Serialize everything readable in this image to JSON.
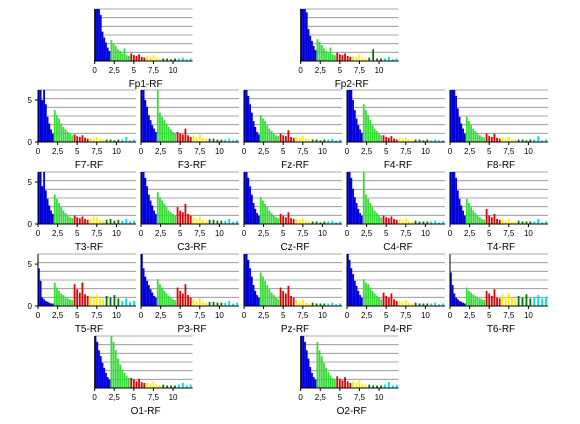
{
  "colors": {
    "bands": [
      "#0000dd",
      "#33dd33",
      "#dd0000",
      "#ffee00",
      "#007700",
      "#00dddd"
    ],
    "grid": "#8c8c8c",
    "axis": "#000000"
  },
  "chart_data": {
    "type": "bar",
    "layout": "eeg-10-20-grid",
    "x_ticks": [
      "0",
      "2,5",
      "5",
      "7,5",
      "10"
    ],
    "x_tick_values": [
      0,
      2.5,
      5,
      7.5,
      10
    ],
    "xlim": [
      0,
      12.5
    ],
    "ylim": [
      0,
      6.2
    ],
    "y_ticks": [
      "0",
      "5"
    ],
    "y_tick_values": [
      0,
      5
    ],
    "band_edges_hz": [
      0,
      2,
      4.5,
      6.5,
      8.5,
      10.5,
      12.5
    ],
    "panels": [
      {
        "title": "Fp1-RF",
        "row": 0,
        "col": 0.55,
        "yaxis": false,
        "bands": [
          [
            6.5,
            6.2,
            6.2,
            5.5,
            3.5,
            2.8,
            2.2,
            1.6,
            1.2
          ],
          [
            2.5,
            2.1,
            1.8,
            1.4,
            1.2,
            0.9,
            1.5,
            0.7,
            0.6
          ],
          [
            0.9,
            0.7,
            0.6,
            0.8,
            0.5,
            0.4
          ],
          [
            0.6,
            0.5,
            0.7,
            0.4,
            0.3
          ],
          [
            0.3,
            0.3,
            0.2,
            0.3
          ],
          [
            0.3,
            0.4,
            0.2,
            0.3
          ]
        ]
      },
      {
        "title": "Fp2-RF",
        "row": 0,
        "col": 2.55,
        "yaxis": false,
        "bands": [
          [
            6.5,
            6.2,
            6.2,
            5.8,
            3.8,
            3.0,
            2.4,
            1.8,
            1.3
          ],
          [
            2.6,
            2.3,
            1.9,
            1.5,
            1.2,
            1.0,
            1.6,
            0.8,
            0.7
          ],
          [
            1.0,
            0.8,
            0.7,
            0.9,
            0.6,
            0.5
          ],
          [
            0.6,
            0.5,
            0.8,
            0.4,
            0.3
          ],
          [
            0.4,
            1.4,
            0.3,
            0.3
          ],
          [
            0.3,
            0.5,
            0.2,
            0.3
          ]
        ]
      },
      {
        "title": "F7-RF",
        "row": 1,
        "col": 0,
        "yaxis": true,
        "bands": [
          [
            6.2,
            6.2,
            5.0,
            6.2,
            4.5,
            3.0,
            2.2,
            1.5,
            1.0
          ],
          [
            3.8,
            3.2,
            2.8,
            2.2,
            1.8,
            1.5,
            1.2,
            1.0,
            0.8
          ],
          [
            0.9,
            0.7,
            0.6,
            0.8,
            0.5,
            0.4
          ],
          [
            0.5,
            0.4,
            0.6,
            0.4,
            0.3
          ],
          [
            0.3,
            0.3,
            0.2,
            0.3
          ],
          [
            0.3,
            0.6,
            0.2,
            0.3
          ]
        ]
      },
      {
        "title": "F3-RF",
        "row": 1,
        "col": 1,
        "yaxis": false,
        "bands": [
          [
            6.2,
            6.2,
            5.0,
            4.2,
            3.2,
            2.6,
            2.0,
            1.6,
            1.2
          ],
          [
            6.2,
            3.5,
            3.0,
            2.6,
            2.2,
            1.8,
            1.5,
            1.2,
            1.0
          ],
          [
            1.2,
            1.0,
            0.9,
            1.6,
            0.8,
            0.6
          ],
          [
            0.8,
            0.6,
            0.9,
            0.5,
            0.4
          ],
          [
            0.4,
            0.4,
            0.3,
            0.3
          ],
          [
            0.3,
            0.4,
            0.2,
            0.3
          ]
        ]
      },
      {
        "title": "Fz-RF",
        "row": 1,
        "col": 2,
        "yaxis": false,
        "bands": [
          [
            6.2,
            6.2,
            5.5,
            4.5,
            3.5,
            2.5,
            1.8,
            1.2,
            0.9
          ],
          [
            3.2,
            2.8,
            2.5,
            2.0,
            1.6,
            1.3,
            1.0,
            0.8,
            0.7
          ],
          [
            1.0,
            0.8,
            0.7,
            1.4,
            0.6,
            0.5
          ],
          [
            0.6,
            0.5,
            0.7,
            0.4,
            0.3
          ],
          [
            0.3,
            0.3,
            0.2,
            0.3
          ],
          [
            0.3,
            0.4,
            0.2,
            0.3
          ]
        ]
      },
      {
        "title": "F4-RF",
        "row": 1,
        "col": 3,
        "yaxis": false,
        "bands": [
          [
            6.2,
            6.2,
            6.2,
            5.0,
            3.8,
            2.8,
            2.0,
            1.5,
            1.1
          ],
          [
            4.5,
            3.8,
            3.2,
            2.6,
            2.0,
            1.6,
            1.3,
            1.0,
            0.8
          ],
          [
            0.8,
            0.6,
            0.5,
            0.7,
            0.4,
            0.3
          ],
          [
            0.5,
            0.4,
            0.5,
            0.3,
            0.3
          ],
          [
            0.3,
            0.3,
            0.2,
            0.3
          ],
          [
            0.2,
            0.3,
            0.2,
            0.2
          ]
        ]
      },
      {
        "title": "F8-RF",
        "row": 1,
        "col": 4,
        "yaxis": false,
        "bands": [
          [
            6.2,
            6.2,
            6.2,
            5.5,
            4.0,
            3.0,
            2.2,
            1.6,
            1.0
          ],
          [
            3.0,
            2.5,
            2.0,
            1.6,
            1.3,
            1.0,
            0.8,
            0.6,
            0.5
          ],
          [
            1.0,
            0.7,
            0.6,
            1.0,
            0.5,
            0.4
          ],
          [
            0.5,
            0.4,
            0.6,
            0.3,
            0.3
          ],
          [
            0.3,
            0.3,
            0.2,
            0.3
          ],
          [
            0.3,
            0.7,
            0.2,
            0.3
          ]
        ]
      },
      {
        "title": "T3-RF",
        "row": 2,
        "col": 0,
        "yaxis": true,
        "bands": [
          [
            6.2,
            6.2,
            4.5,
            6.2,
            4.0,
            3.0,
            2.2,
            1.6,
            1.2
          ],
          [
            3.5,
            3.0,
            2.5,
            2.0,
            1.6,
            1.3,
            1.0,
            0.8,
            0.7
          ],
          [
            1.0,
            0.8,
            0.7,
            0.9,
            0.6,
            0.5
          ],
          [
            0.6,
            0.9,
            0.8,
            0.5,
            0.4
          ],
          [
            0.5,
            0.6,
            0.4,
            0.5
          ],
          [
            0.4,
            0.6,
            0.3,
            0.4
          ]
        ]
      },
      {
        "title": "C3-RF",
        "row": 2,
        "col": 1,
        "yaxis": false,
        "bands": [
          [
            6.2,
            6.2,
            5.5,
            4.5,
            3.5,
            2.8,
            2.2,
            1.6,
            1.2
          ],
          [
            3.8,
            3.2,
            2.8,
            2.4,
            2.0,
            1.6,
            1.4,
            1.2,
            1.0
          ],
          [
            2.0,
            1.6,
            1.4,
            2.4,
            1.2,
            1.0
          ],
          [
            0.8,
            0.6,
            0.9,
            0.5,
            0.4
          ],
          [
            0.5,
            0.5,
            0.4,
            0.4
          ],
          [
            0.4,
            0.6,
            0.3,
            0.4
          ]
        ]
      },
      {
        "title": "Cz-RF",
        "row": 2,
        "col": 2,
        "yaxis": false,
        "bands": [
          [
            6.2,
            6.2,
            5.5,
            4.5,
            3.5,
            2.5,
            1.8,
            1.3,
            1.0
          ],
          [
            3.2,
            2.8,
            2.4,
            2.0,
            1.6,
            1.3,
            1.0,
            0.8,
            0.7
          ],
          [
            1.2,
            1.0,
            0.8,
            1.4,
            0.7,
            0.6
          ],
          [
            0.6,
            0.5,
            0.7,
            0.4,
            0.3
          ],
          [
            0.3,
            0.3,
            0.2,
            0.3
          ],
          [
            0.3,
            0.4,
            0.2,
            0.3
          ]
        ]
      },
      {
        "title": "C4-RF",
        "row": 2,
        "col": 3,
        "yaxis": false,
        "bands": [
          [
            6.2,
            6.2,
            5.5,
            4.2,
            3.2,
            2.5,
            1.8,
            1.3,
            1.0
          ],
          [
            6.2,
            3.5,
            3.0,
            2.5,
            2.0,
            1.6,
            1.3,
            1.0,
            0.8
          ],
          [
            1.0,
            0.8,
            0.7,
            0.9,
            0.6,
            0.5
          ],
          [
            0.6,
            0.5,
            0.7,
            0.4,
            0.3
          ],
          [
            0.4,
            0.3,
            0.3,
            0.3
          ],
          [
            0.3,
            0.4,
            0.2,
            0.3
          ]
        ]
      },
      {
        "title": "T4-RF",
        "row": 2,
        "col": 4,
        "yaxis": false,
        "bands": [
          [
            6.2,
            6.2,
            6.2,
            5.5,
            4.0,
            3.0,
            2.2,
            1.6,
            1.0
          ],
          [
            3.0,
            2.5,
            2.0,
            1.6,
            1.3,
            1.0,
            0.8,
            0.6,
            0.5
          ],
          [
            1.8,
            1.0,
            0.8,
            1.2,
            0.6,
            0.5
          ],
          [
            0.5,
            0.4,
            0.6,
            0.3,
            0.3
          ],
          [
            0.4,
            0.3,
            0.3,
            0.3
          ],
          [
            0.3,
            0.6,
            0.2,
            0.3
          ]
        ]
      },
      {
        "title": "T5-RF",
        "row": 3,
        "col": 0,
        "yaxis": true,
        "bands": [
          [
            4.5,
            3.0,
            1.0,
            0.8,
            0.6,
            0.5,
            0.4,
            0.3,
            0.3
          ],
          [
            2.8,
            2.2,
            1.8,
            1.5,
            1.3,
            1.1,
            0.9,
            0.8,
            0.7
          ],
          [
            2.6,
            2.0,
            1.6,
            2.8,
            1.4,
            1.2
          ],
          [
            1.2,
            1.0,
            1.4,
            0.9,
            0.8
          ],
          [
            1.2,
            1.0,
            1.3,
            0.9
          ],
          [
            0.6,
            0.9,
            0.5,
            0.6
          ]
        ]
      },
      {
        "title": "P3-RF",
        "row": 3,
        "col": 1,
        "yaxis": false,
        "bands": [
          [
            6.2,
            4.5,
            3.5,
            3.0,
            2.5,
            2.0,
            1.6,
            1.2,
            1.0
          ],
          [
            3.2,
            2.6,
            2.2,
            1.8,
            1.5,
            1.2,
            1.0,
            0.8,
            0.7
          ],
          [
            2.2,
            1.8,
            1.5,
            2.6,
            1.3,
            1.0
          ],
          [
            0.8,
            0.6,
            1.0,
            0.5,
            0.4
          ],
          [
            0.5,
            0.5,
            0.4,
            0.4
          ],
          [
            0.4,
            0.6,
            0.3,
            0.4
          ]
        ]
      },
      {
        "title": "Pz-RF",
        "row": 3,
        "col": 2,
        "yaxis": false,
        "bands": [
          [
            6.2,
            6.2,
            5.5,
            4.5,
            3.5,
            2.5,
            1.8,
            1.3,
            1.0
          ],
          [
            4.0,
            3.5,
            3.0,
            2.5,
            2.0,
            1.6,
            1.3,
            1.0,
            0.8
          ],
          [
            2.2,
            1.8,
            1.5,
            2.4,
            1.2,
            1.0
          ],
          [
            0.7,
            0.5,
            0.8,
            0.4,
            0.3
          ],
          [
            0.4,
            0.3,
            0.3,
            0.3
          ],
          [
            0.3,
            0.4,
            0.2,
            0.3
          ]
        ]
      },
      {
        "title": "P4-RF",
        "row": 3,
        "col": 3,
        "yaxis": false,
        "bands": [
          [
            6.2,
            5.5,
            4.5,
            3.8,
            3.0,
            2.4,
            1.8,
            1.3,
            1.0
          ],
          [
            3.2,
            2.8,
            2.6,
            2.2,
            1.8,
            1.5,
            1.2,
            1.0,
            0.8
          ],
          [
            1.6,
            1.2,
            1.0,
            1.5,
            0.8,
            0.6
          ],
          [
            0.6,
            0.5,
            0.7,
            0.4,
            0.3
          ],
          [
            0.4,
            0.3,
            0.3,
            0.3
          ],
          [
            0.3,
            0.4,
            0.2,
            0.3
          ]
        ]
      },
      {
        "title": "T6-RF",
        "row": 3,
        "col": 4,
        "yaxis": false,
        "bands": [
          [
            4.0,
            2.5,
            1.5,
            1.0,
            0.8,
            0.6,
            0.5,
            0.4,
            0.3
          ],
          [
            2.2,
            1.8,
            1.6,
            1.4,
            1.2,
            1.0,
            0.9,
            0.8,
            0.7
          ],
          [
            1.8,
            1.5,
            1.2,
            2.0,
            1.0,
            0.9
          ],
          [
            1.4,
            1.1,
            1.5,
            1.0,
            0.9
          ],
          [
            1.2,
            1.0,
            1.4,
            0.9
          ],
          [
            1.0,
            1.3,
            0.9,
            1.1
          ]
        ]
      },
      {
        "title": "O1-RF",
        "row": 4,
        "col": 0.55,
        "yaxis": false,
        "bands": [
          [
            6.2,
            5.5,
            4.5,
            3.8,
            3.0,
            2.4,
            1.8,
            1.3,
            1.0
          ],
          [
            6.2,
            5.5,
            4.5,
            3.5,
            2.8,
            2.2,
            1.8,
            1.4,
            1.2
          ],
          [
            1.2,
            1.0,
            0.8,
            1.1,
            0.7,
            0.6
          ],
          [
            0.6,
            0.5,
            0.8,
            0.4,
            0.3
          ],
          [
            0.4,
            0.3,
            0.3,
            0.3
          ],
          [
            0.4,
            0.6,
            0.3,
            0.4
          ]
        ]
      },
      {
        "title": "O2-RF",
        "row": 4,
        "col": 2.55,
        "yaxis": false,
        "bands": [
          [
            6.2,
            6.2,
            5.5,
            4.5,
            3.5,
            2.5,
            1.8,
            1.3,
            1.0
          ],
          [
            5.5,
            4.5,
            3.8,
            3.0,
            2.4,
            1.9,
            1.5,
            1.2,
            1.0
          ],
          [
            1.4,
            1.1,
            0.9,
            1.3,
            0.8,
            0.6
          ],
          [
            0.8,
            0.6,
            1.0,
            0.5,
            0.4
          ],
          [
            0.4,
            0.3,
            0.3,
            0.3
          ],
          [
            0.4,
            0.7,
            0.3,
            0.4
          ]
        ]
      }
    ]
  }
}
